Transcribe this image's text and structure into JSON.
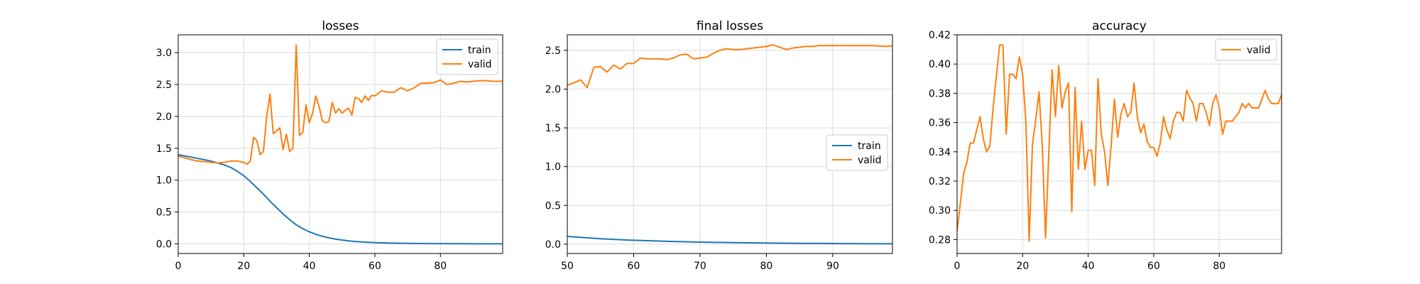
{
  "chart_data": [
    {
      "type": "line",
      "title": "losses",
      "xlabel": "",
      "ylabel": "",
      "xlim": [
        0,
        99
      ],
      "ylim": [
        -0.15,
        3.28
      ],
      "xticks": [
        0,
        20,
        40,
        60,
        80
      ],
      "yticks": [
        0.0,
        0.5,
        1.0,
        1.5,
        2.0,
        2.5,
        3.0
      ],
      "ytick_decimals": 1,
      "grid": true,
      "legend": "upper right",
      "series": [
        {
          "name": "train",
          "color": "#1f77b4",
          "x": [
            0,
            2,
            4,
            6,
            8,
            10,
            12,
            14,
            16,
            18,
            20,
            22,
            24,
            26,
            28,
            30,
            32,
            34,
            36,
            38,
            40,
            42,
            44,
            46,
            48,
            50,
            52,
            54,
            56,
            58,
            60,
            62,
            64,
            66,
            68,
            70,
            72,
            74,
            76,
            78,
            80,
            82,
            84,
            86,
            88,
            90,
            92,
            94,
            96,
            98,
            99
          ],
          "y": [
            1.4,
            1.38,
            1.36,
            1.34,
            1.32,
            1.3,
            1.27,
            1.24,
            1.2,
            1.14,
            1.07,
            0.98,
            0.88,
            0.78,
            0.67,
            0.57,
            0.47,
            0.38,
            0.3,
            0.24,
            0.19,
            0.15,
            0.12,
            0.095,
            0.075,
            0.06,
            0.048,
            0.038,
            0.031,
            0.025,
            0.02,
            0.017,
            0.014,
            0.012,
            0.01,
            0.008,
            0.007,
            0.006,
            0.005,
            0.005,
            0.004,
            0.004,
            0.003,
            0.003,
            0.003,
            0.002,
            0.002,
            0.002,
            0.002,
            0.002,
            0.002
          ]
        },
        {
          "name": "valid",
          "color": "#ff7f0e",
          "x": [
            0,
            2,
            4,
            6,
            8,
            10,
            12,
            14,
            16,
            18,
            20,
            21,
            22,
            23,
            24,
            25,
            26,
            27,
            28,
            29,
            30,
            31,
            32,
            33,
            34,
            35,
            36,
            37,
            38,
            39,
            40,
            41,
            42,
            43,
            44,
            45,
            46,
            47,
            48,
            49,
            50,
            51,
            52,
            53,
            54,
            55,
            56,
            57,
            58,
            59,
            60,
            62,
            64,
            66,
            67,
            68,
            70,
            72,
            74,
            76,
            78,
            80,
            82,
            84,
            86,
            88,
            90,
            92,
            94,
            96,
            98,
            99
          ],
          "y": [
            1.38,
            1.35,
            1.32,
            1.3,
            1.29,
            1.28,
            1.27,
            1.28,
            1.3,
            1.3,
            1.28,
            1.25,
            1.3,
            1.67,
            1.62,
            1.4,
            1.45,
            2.0,
            2.35,
            1.73,
            1.77,
            1.82,
            1.48,
            1.72,
            1.45,
            1.5,
            3.12,
            1.7,
            1.75,
            2.18,
            1.9,
            2.05,
            2.32,
            2.15,
            1.93,
            1.9,
            1.92,
            2.22,
            2.05,
            2.12,
            2.05,
            2.1,
            2.13,
            2.02,
            2.3,
            2.28,
            2.22,
            2.32,
            2.25,
            2.33,
            2.32,
            2.4,
            2.38,
            2.38,
            2.42,
            2.45,
            2.4,
            2.45,
            2.52,
            2.52,
            2.53,
            2.57,
            2.5,
            2.52,
            2.55,
            2.54,
            2.55,
            2.56,
            2.56,
            2.55,
            2.55,
            2.55
          ]
        }
      ]
    },
    {
      "type": "line",
      "title": "final losses",
      "xlabel": "",
      "ylabel": "",
      "xlim": [
        50,
        99
      ],
      "ylim": [
        -0.12,
        2.7
      ],
      "xticks": [
        50,
        60,
        70,
        80,
        90
      ],
      "yticks": [
        0.0,
        0.5,
        1.0,
        1.5,
        2.0,
        2.5
      ],
      "ytick_decimals": 1,
      "grid": true,
      "legend": "center right",
      "series": [
        {
          "name": "train",
          "color": "#1f77b4",
          "x": [
            50,
            55,
            60,
            65,
            70,
            75,
            80,
            85,
            90,
            95,
            99
          ],
          "y": [
            0.1,
            0.07,
            0.05,
            0.037,
            0.027,
            0.02,
            0.015,
            0.011,
            0.008,
            0.006,
            0.005
          ]
        },
        {
          "name": "valid",
          "color": "#ff7f0e",
          "x": [
            50,
            51,
            52,
            53,
            54,
            55,
            56,
            57,
            58,
            59,
            60,
            61,
            62,
            63,
            64,
            65,
            66,
            67,
            68,
            69,
            70,
            71,
            72,
            73,
            74,
            75,
            76,
            77,
            78,
            79,
            80,
            81,
            82,
            83,
            84,
            85,
            86,
            87,
            88,
            89,
            90,
            92,
            94,
            96,
            98,
            99
          ],
          "y": [
            2.05,
            2.08,
            2.12,
            2.02,
            2.28,
            2.29,
            2.22,
            2.31,
            2.26,
            2.33,
            2.33,
            2.4,
            2.39,
            2.39,
            2.39,
            2.38,
            2.4,
            2.44,
            2.45,
            2.39,
            2.4,
            2.41,
            2.46,
            2.5,
            2.52,
            2.51,
            2.51,
            2.52,
            2.53,
            2.54,
            2.55,
            2.57,
            2.54,
            2.51,
            2.53,
            2.54,
            2.55,
            2.55,
            2.56,
            2.56,
            2.56,
            2.56,
            2.56,
            2.56,
            2.55,
            2.56
          ]
        }
      ]
    },
    {
      "type": "line",
      "title": "accuracy",
      "xlabel": "",
      "ylabel": "",
      "xlim": [
        0,
        99
      ],
      "ylim": [
        0.2705,
        0.42
      ],
      "xticks": [
        0,
        20,
        40,
        60,
        80
      ],
      "yticks": [
        0.28,
        0.3,
        0.32,
        0.34,
        0.36,
        0.38,
        0.4,
        0.42
      ],
      "ytick_decimals": 2,
      "grid": true,
      "legend": "upper right",
      "series": [
        {
          "name": "valid",
          "color": "#ff7f0e",
          "x": [
            0,
            1,
            2,
            3,
            4,
            5,
            6,
            7,
            8,
            9,
            10,
            11,
            12,
            13,
            14,
            15,
            16,
            17,
            18,
            19,
            20,
            21,
            22,
            23,
            24,
            25,
            26,
            27,
            28,
            29,
            30,
            31,
            32,
            33,
            34,
            35,
            36,
            37,
            38,
            39,
            40,
            41,
            42,
            43,
            44,
            45,
            46,
            47,
            48,
            49,
            50,
            51,
            52,
            53,
            54,
            55,
            56,
            57,
            58,
            59,
            60,
            61,
            62,
            63,
            64,
            65,
            66,
            67,
            68,
            69,
            70,
            71,
            72,
            73,
            74,
            75,
            76,
            77,
            78,
            79,
            80,
            81,
            82,
            83,
            84,
            85,
            86,
            87,
            88,
            89,
            90,
            91,
            92,
            93,
            94,
            95,
            96,
            97,
            98,
            99
          ],
          "y": [
            0.286,
            0.305,
            0.325,
            0.333,
            0.346,
            0.346,
            0.355,
            0.364,
            0.349,
            0.34,
            0.344,
            0.37,
            0.392,
            0.413,
            0.413,
            0.352,
            0.393,
            0.393,
            0.39,
            0.405,
            0.393,
            0.36,
            0.279,
            0.345,
            0.362,
            0.381,
            0.344,
            0.281,
            0.34,
            0.396,
            0.364,
            0.399,
            0.37,
            0.381,
            0.387,
            0.299,
            0.384,
            0.328,
            0.361,
            0.328,
            0.341,
            0.341,
            0.317,
            0.39,
            0.352,
            0.34,
            0.317,
            0.344,
            0.376,
            0.35,
            0.366,
            0.373,
            0.364,
            0.367,
            0.387,
            0.364,
            0.353,
            0.359,
            0.347,
            0.343,
            0.343,
            0.337,
            0.346,
            0.364,
            0.355,
            0.349,
            0.361,
            0.367,
            0.367,
            0.361,
            0.382,
            0.377,
            0.373,
            0.361,
            0.373,
            0.373,
            0.367,
            0.358,
            0.373,
            0.379,
            0.37,
            0.352,
            0.361,
            0.361,
            0.361,
            0.364,
            0.367,
            0.373,
            0.37,
            0.373,
            0.37,
            0.37,
            0.37,
            0.376,
            0.382,
            0.376,
            0.373,
            0.373,
            0.373,
            0.379
          ]
        }
      ]
    }
  ]
}
